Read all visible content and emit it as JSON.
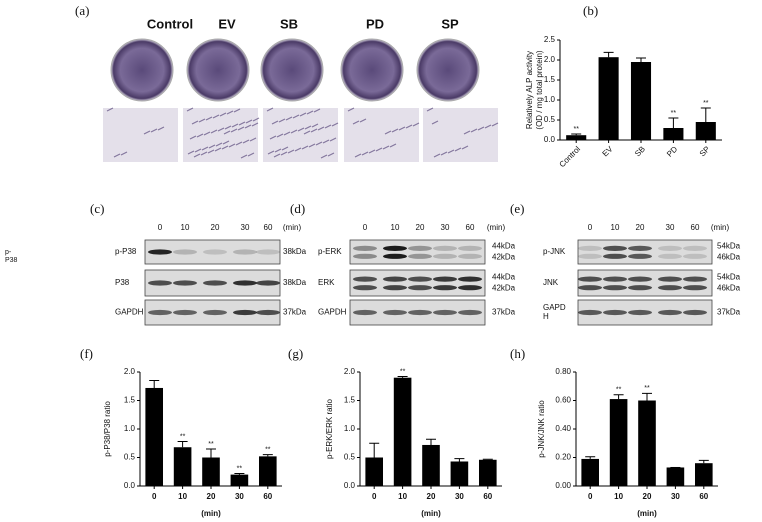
{
  "panel_a": {
    "label": "(a)",
    "groups": [
      "Control",
      "EV",
      "SB",
      "PD",
      "SP"
    ]
  },
  "side_note": [
    "p-",
    "P38"
  ],
  "blots": [
    {
      "label": "(c)",
      "times": [
        "0",
        "10",
        "20",
        "30",
        "60"
      ],
      "unit": "(min)",
      "rows": [
        {
          "name": [
            "p-P38"
          ],
          "sizes": [
            "38kDa"
          ]
        },
        {
          "name": [
            "P38"
          ],
          "sizes": [
            "38kDa"
          ]
        },
        {
          "name": [
            "GAPDH"
          ],
          "sizes": [
            "37kDa"
          ]
        }
      ]
    },
    {
      "label": "(d)",
      "times": [
        "0",
        "10",
        "20",
        "30",
        "60"
      ],
      "unit": "(min)",
      "rows": [
        {
          "name": [
            "p-ERK"
          ],
          "sizes": [
            "44kDa",
            "42kDa"
          ]
        },
        {
          "name": [
            "ERK"
          ],
          "sizes": [
            "44kDa",
            "42kDa"
          ]
        },
        {
          "name": [
            "GAPDH"
          ],
          "sizes": [
            "37kDa"
          ]
        }
      ]
    },
    {
      "label": "(e)",
      "times": [
        "0",
        "10",
        "20",
        "30",
        "60"
      ],
      "unit": "(min)",
      "rows": [
        {
          "name": [
            "p-JNK"
          ],
          "sizes": [
            "54kDa",
            "46kDa"
          ]
        },
        {
          "name": [
            "JNK"
          ],
          "sizes": [
            "54kDa",
            "46kDa"
          ]
        },
        {
          "name": [
            "GAPD",
            "H"
          ],
          "sizes": [
            "37kDa"
          ]
        }
      ]
    }
  ],
  "chart_data": [
    {
      "type": "bar",
      "title": "(b)",
      "ylabel": [
        "Relatively ALP activity",
        "(OD / mg total protein)"
      ],
      "categories": [
        "Control",
        "EV",
        "SB",
        "PD",
        "SP"
      ],
      "values": [
        0.12,
        2.07,
        1.95,
        0.3,
        0.45
      ],
      "errors": [
        0.03,
        0.12,
        0.1,
        0.25,
        0.35
      ],
      "significance": [
        "**",
        null,
        null,
        "**",
        "**"
      ],
      "color": "#000000",
      "ylim": [
        0,
        2.5
      ],
      "yticks": [
        {
          "value": 0,
          "label": "0.0"
        },
        0.5,
        {
          "value": 1,
          "label": "1.0"
        },
        1.5,
        {
          "value": 2,
          "label": "2.0"
        },
        2.5
      ]
    },
    {
      "type": "bar",
      "title": "(f)",
      "ylabel": "p-P38/P38 ratio",
      "xlabel": "(min)",
      "categories": [
        "0",
        "10",
        "20",
        "30",
        "60"
      ],
      "values": [
        1.72,
        0.68,
        0.5,
        0.2,
        0.52
      ],
      "errors": [
        0.13,
        0.1,
        0.15,
        0.02,
        0.03
      ],
      "significance": [
        null,
        "**",
        "**",
        "**",
        "**"
      ],
      "color": "#000000",
      "ylim": [
        0,
        2
      ],
      "yticks": [
        {
          "value": 0,
          "label": "0.0"
        },
        0.5,
        {
          "value": 1,
          "label": "1.0"
        },
        1.5,
        {
          "value": 2,
          "label": "2.0"
        }
      ]
    },
    {
      "type": "bar",
      "title": "(g)",
      "ylabel": "p-ERK/ERK ratio",
      "xlabel": "(min)",
      "categories": [
        "0",
        "10",
        "20",
        "30",
        "60"
      ],
      "values": [
        0.5,
        1.9,
        0.72,
        0.43,
        0.46
      ],
      "errors": [
        0.25,
        0.02,
        0.1,
        0.05,
        0.01
      ],
      "significance": [
        null,
        "**",
        null,
        null,
        null
      ],
      "color": "#000000",
      "ylim": [
        0,
        2
      ],
      "yticks": [
        {
          "value": 0,
          "label": "0.0"
        },
        0.5,
        {
          "value": 1,
          "label": "1.0"
        },
        1.5,
        {
          "value": 2,
          "label": "2.0"
        }
      ]
    },
    {
      "type": "bar",
      "title": "(h)",
      "ylabel": "p-JNK/JNK ratio",
      "xlabel": "(min)",
      "categories": [
        "0",
        "10",
        "20",
        "30",
        "60"
      ],
      "values": [
        0.19,
        0.61,
        0.6,
        0.13,
        0.16
      ],
      "errors": [
        0.015,
        0.03,
        0.05,
        0,
        0.02
      ],
      "significance": [
        null,
        "**",
        "**",
        null,
        null
      ],
      "color": "#000000",
      "ylim": [
        0,
        0.8
      ],
      "yticks": [
        {
          "value": 0,
          "label": "0.00"
        },
        {
          "value": 0.2,
          "label": "0.20"
        },
        {
          "value": 0.4,
          "label": "0.40"
        },
        {
          "value": 0.6,
          "label": "0.60"
        },
        {
          "value": 0.8,
          "label": "0.80"
        }
      ]
    }
  ]
}
